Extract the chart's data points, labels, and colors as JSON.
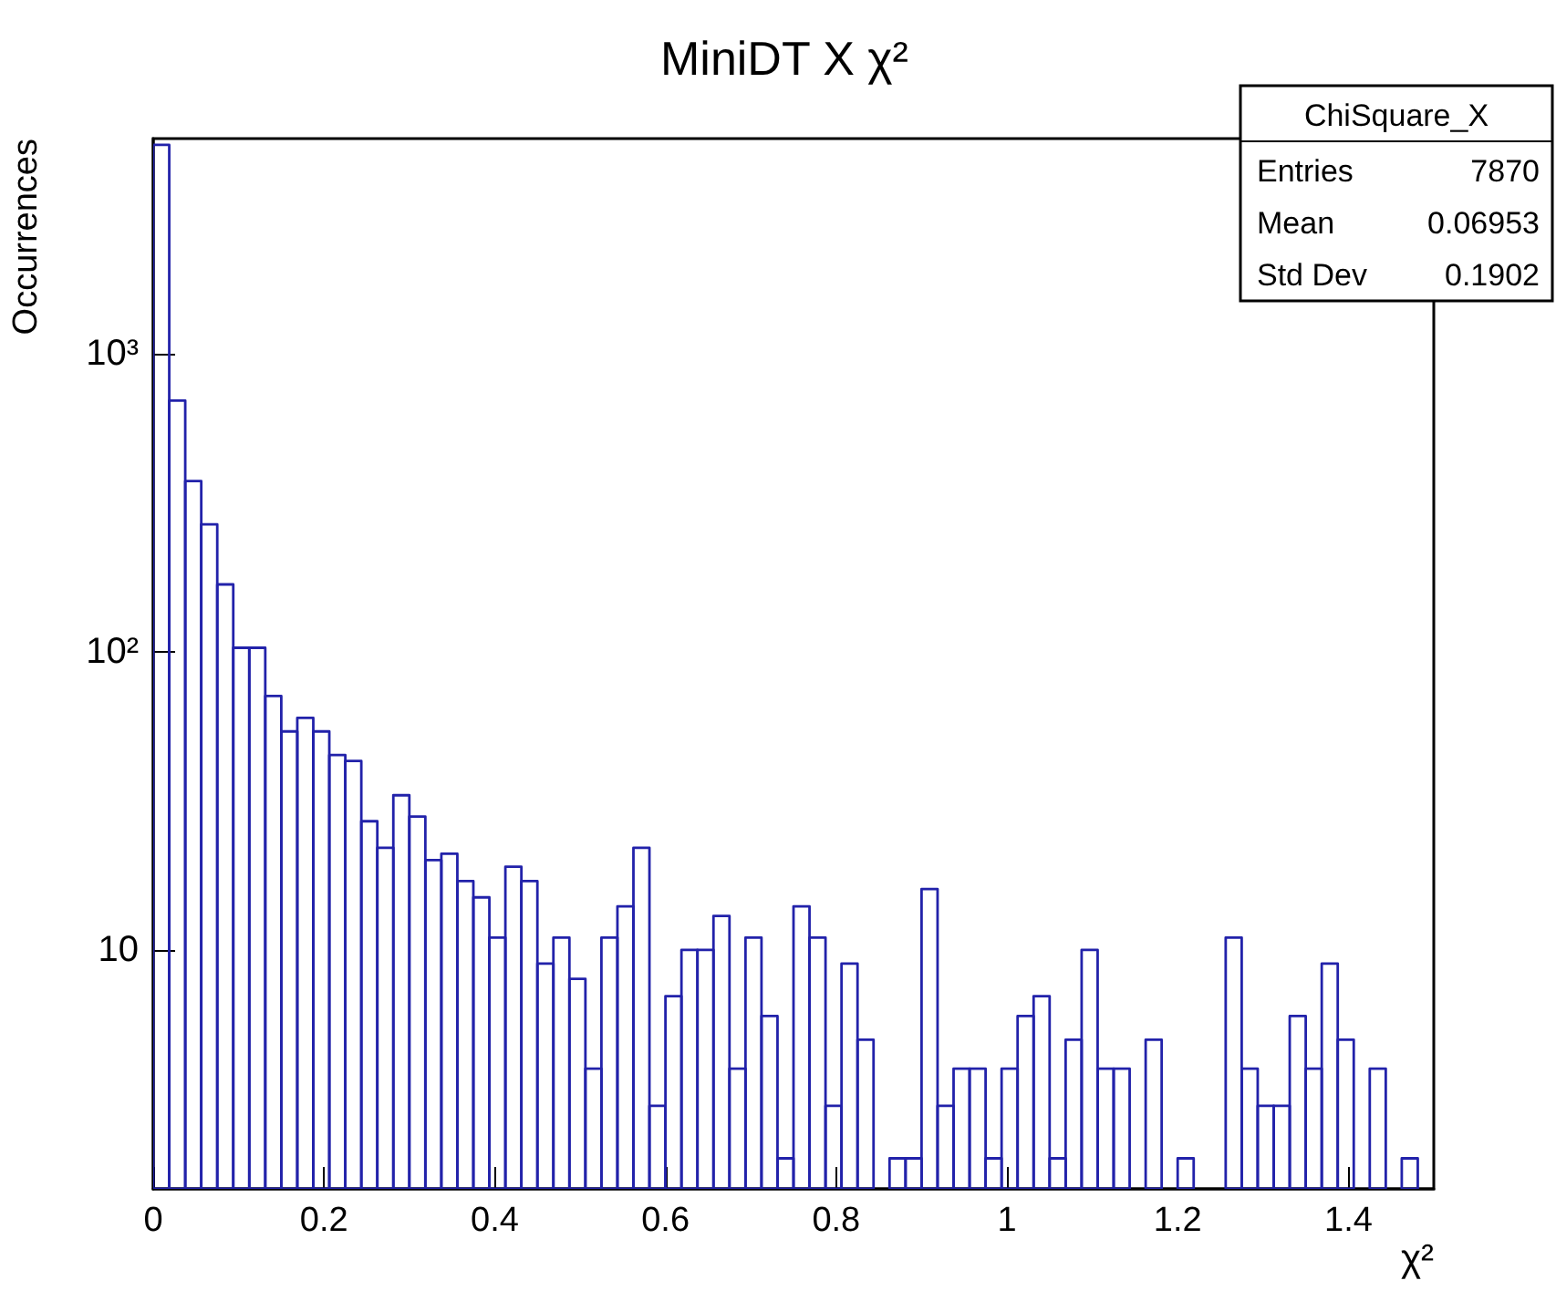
{
  "chart_data": {
    "type": "histogram",
    "title": "MiniDT X χ²",
    "xlabel": "χ²",
    "ylabel": "Occurrences",
    "bins": [
      0,
      0.01875,
      0.0375,
      0.05625,
      0.075,
      0.09375,
      0.1125,
      0.13125,
      0.15,
      0.16875,
      0.1875,
      0.20625,
      0.225,
      0.24375,
      0.2625,
      0.28125,
      0.3,
      0.31875,
      0.3375,
      0.35625,
      0.375,
      0.39375,
      0.4125,
      0.43125,
      0.45,
      0.46875,
      0.4875,
      0.50625,
      0.525,
      0.54375,
      0.5625,
      0.58125,
      0.6,
      0.61875,
      0.6375,
      0.65625,
      0.675,
      0.69375,
      0.7125,
      0.73125,
      0.75,
      0.76875,
      0.7875,
      0.80625,
      0.825,
      0.84375,
      0.8625,
      0.88125,
      0.9,
      0.91875,
      0.9375,
      0.95625,
      0.975,
      0.99375,
      1.0125,
      1.03125,
      1.05,
      1.06875,
      1.0875,
      1.10625,
      1.125,
      1.14375,
      1.1625,
      1.18125,
      1.2,
      1.21875,
      1.2375,
      1.25625,
      1.275,
      1.29375,
      1.3125,
      1.33125,
      1.35,
      1.36875,
      1.3875,
      1.40625,
      1.425,
      1.44375,
      1.4625,
      1.48125,
      1.5
    ],
    "values": [
      5000,
      695,
      373,
      267,
      168,
      103,
      103,
      71,
      54,
      60,
      54,
      45,
      43,
      27,
      22,
      33,
      28,
      20,
      21,
      17,
      15,
      11,
      19,
      17,
      9,
      11,
      8,
      4,
      11,
      14,
      22,
      3,
      7,
      10,
      10,
      13,
      4,
      11,
      6,
      2,
      14,
      11,
      3,
      9,
      5,
      null,
      2,
      2,
      16,
      3,
      4,
      4,
      2,
      4,
      6,
      7,
      2,
      5,
      10,
      4,
      4,
      null,
      5,
      null,
      2,
      null,
      null,
      11,
      4,
      3,
      3,
      6,
      4,
      9,
      5,
      null,
      4,
      null,
      2,
      null
    ],
    "color": "#2222aa",
    "log": "y",
    "grid": false,
    "xlim": [
      0,
      1.5
    ],
    "xticks": [
      0,
      0.2,
      0.4,
      0.6,
      0.8,
      1,
      1.2,
      1.4
    ],
    "ylim": [
      1.58,
      5250
    ],
    "yticks": [
      10,
      {
        "value": 100,
        "label": "10²"
      },
      {
        "value": 1000,
        "label": "10³"
      }
    ],
    "annotations": [
      "ChiSquare_X",
      "Entries 7870",
      "Mean 0.06953",
      "Std Dev 0.1902"
    ]
  }
}
